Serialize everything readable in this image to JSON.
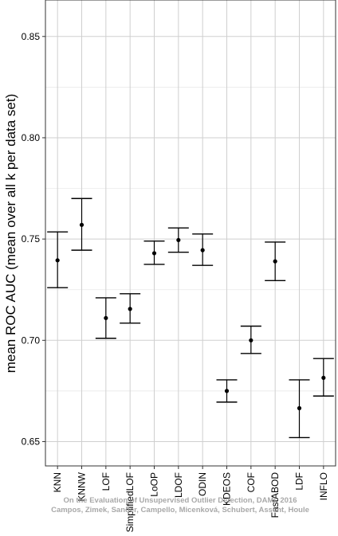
{
  "chart_data": {
    "type": "errorbar",
    "ylabel": "mean ROC AUC (mean over all k per data set)",
    "xlabel": "",
    "ylim": [
      0.638,
      0.868
    ],
    "yticks": [
      0.65,
      0.7,
      0.75,
      0.8,
      0.85
    ],
    "ytick_labels": [
      "0.65",
      "0.70",
      "0.75",
      "0.80",
      "0.85"
    ],
    "grid": true,
    "categories": [
      "KNN",
      "KNNW",
      "LOF",
      "SimplifiedLOF",
      "LoOP",
      "LDOF",
      "ODIN",
      "KDEOS",
      "COF",
      "FastABOD",
      "LDF",
      "INFLO"
    ],
    "series": [
      {
        "mean": [
          0.7395,
          0.757,
          0.711,
          0.7155,
          0.743,
          0.7495,
          0.7445,
          0.675,
          0.7,
          0.739,
          0.6665,
          0.6815
        ],
        "lower": [
          0.726,
          0.7445,
          0.701,
          0.7085,
          0.7375,
          0.7435,
          0.737,
          0.6695,
          0.6935,
          0.7295,
          0.652,
          0.6725
        ],
        "upper": [
          0.7535,
          0.77,
          0.721,
          0.723,
          0.749,
          0.7555,
          0.7525,
          0.6805,
          0.707,
          0.7485,
          0.6805,
          0.691
        ]
      }
    ],
    "watermark": {
      "line1": "On the Evaluation of Unsupervised Outlier Detection, DAMI, 2016",
      "line2": "Campos, Zimek, Sander, Campello, Micenková, Schubert, Assent, Houle"
    }
  }
}
